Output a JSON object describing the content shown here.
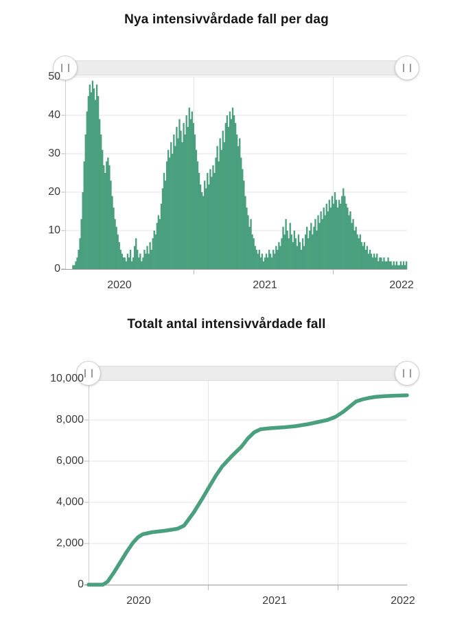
{
  "page": {
    "background": "#ffffff",
    "accent_color": "#4aa07e"
  },
  "chart_data": [
    {
      "type": "bar",
      "title": "Nya intensivvårdade fall per dag",
      "xlabel": "",
      "ylabel": "",
      "ylim": [
        0,
        50
      ],
      "y_ticks": [
        0,
        10,
        20,
        30,
        40,
        50
      ],
      "y_tick_labels": [
        "0",
        "10",
        "20",
        "30",
        "40",
        "50"
      ],
      "x_tick_labels": [
        "2020",
        "2021",
        "2022"
      ],
      "grid": true,
      "colors": {
        "series": "#4aa07e"
      },
      "series_name": "Nya intensivvårdade fall per dag",
      "values": [
        0,
        0,
        0,
        0,
        0,
        1,
        1,
        2,
        3,
        5,
        8,
        13,
        20,
        28,
        35,
        41,
        45,
        48,
        46,
        49,
        47,
        44,
        48,
        45,
        39,
        35,
        31,
        27,
        25,
        28,
        29,
        27,
        23,
        19,
        16,
        13,
        11,
        9,
        7,
        5,
        4,
        3,
        3,
        2,
        4,
        3,
        5,
        2,
        3,
        6,
        8,
        5,
        3,
        4,
        2,
        3,
        5,
        4,
        6,
        4,
        7,
        5,
        8,
        10,
        9,
        12,
        14,
        13,
        17,
        21,
        25,
        23,
        28,
        31,
        29,
        33,
        30,
        35,
        32,
        37,
        34,
        39,
        36,
        33,
        38,
        35,
        40,
        37,
        42,
        39,
        41,
        38,
        35,
        31,
        28,
        25,
        22,
        20,
        19,
        23,
        21,
        25,
        22,
        26,
        24,
        27,
        25,
        29,
        32,
        28,
        34,
        31,
        36,
        33,
        38,
        40,
        37,
        41,
        39,
        42,
        40,
        38,
        35,
        32,
        34,
        29,
        26,
        23,
        19,
        16,
        14,
        11,
        13,
        9,
        8,
        6,
        5,
        4,
        5,
        3,
        4,
        2,
        3,
        4,
        3,
        5,
        4,
        3,
        5,
        4,
        6,
        5,
        7,
        6,
        8,
        11,
        9,
        13,
        10,
        8,
        12,
        9,
        7,
        10,
        8,
        6,
        9,
        7,
        5,
        8,
        6,
        9,
        11,
        8,
        10,
        12,
        9,
        11,
        13,
        10,
        14,
        12,
        15,
        13,
        16,
        14,
        17,
        15,
        18,
        16,
        19,
        17,
        20,
        18,
        16,
        18,
        17,
        19,
        21,
        19,
        17,
        16,
        14,
        15,
        12,
        13,
        10,
        11,
        9,
        8,
        9,
        7,
        6,
        7,
        5,
        6,
        4,
        5,
        4,
        3,
        4,
        3,
        4,
        2,
        3,
        3,
        2,
        3,
        2,
        2,
        3,
        2,
        2,
        1,
        2,
        1,
        2,
        1,
        1,
        2,
        1,
        2,
        1,
        2
      ]
    },
    {
      "type": "line",
      "title": "Totalt antal intensivvårdade fall",
      "xlabel": "",
      "ylabel": "",
      "ylim": [
        0,
        10000
      ],
      "y_ticks": [
        0,
        2000,
        4000,
        6000,
        8000,
        10000
      ],
      "y_tick_labels": [
        "0",
        "2,000",
        "4,000",
        "6,000",
        "8,000",
        "10,000"
      ],
      "x_tick_labels": [
        "2020",
        "2021",
        "2022"
      ],
      "grid": true,
      "colors": {
        "series": "#4aa07e"
      },
      "series_name": "Totalt antal intensivvårdade fall",
      "points": [
        [
          0.0,
          0
        ],
        [
          0.045,
          0
        ],
        [
          0.06,
          150
        ],
        [
          0.08,
          600
        ],
        [
          0.1,
          1100
        ],
        [
          0.12,
          1600
        ],
        [
          0.14,
          2050
        ],
        [
          0.155,
          2300
        ],
        [
          0.17,
          2450
        ],
        [
          0.2,
          2550
        ],
        [
          0.24,
          2620
        ],
        [
          0.28,
          2720
        ],
        [
          0.3,
          2870
        ],
        [
          0.33,
          3500
        ],
        [
          0.36,
          4250
        ],
        [
          0.375,
          4650
        ],
        [
          0.4,
          5300
        ],
        [
          0.42,
          5750
        ],
        [
          0.45,
          6250
        ],
        [
          0.48,
          6700
        ],
        [
          0.5,
          7100
        ],
        [
          0.52,
          7400
        ],
        [
          0.54,
          7550
        ],
        [
          0.57,
          7600
        ],
        [
          0.61,
          7640
        ],
        [
          0.65,
          7700
        ],
        [
          0.69,
          7800
        ],
        [
          0.72,
          7900
        ],
        [
          0.75,
          8000
        ],
        [
          0.775,
          8150
        ],
        [
          0.8,
          8400
        ],
        [
          0.82,
          8650
        ],
        [
          0.84,
          8900
        ],
        [
          0.86,
          9000
        ],
        [
          0.88,
          9070
        ],
        [
          0.9,
          9120
        ],
        [
          0.93,
          9160
        ],
        [
          0.96,
          9180
        ],
        [
          1.0,
          9200
        ]
      ]
    }
  ]
}
